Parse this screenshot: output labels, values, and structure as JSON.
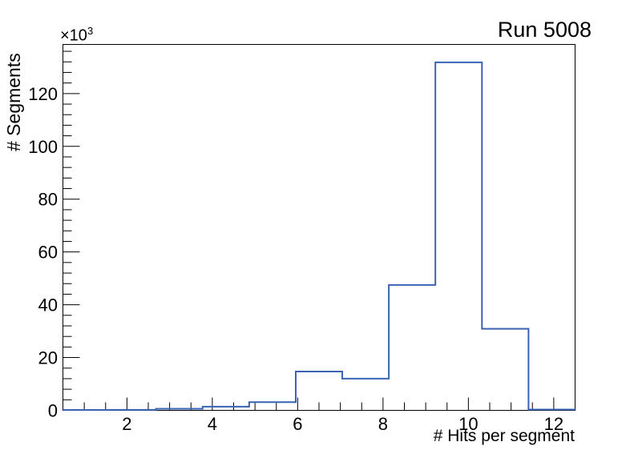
{
  "chart_data": {
    "type": "histogram-step",
    "title": "Run 5008",
    "xlabel": "# Hits per segment",
    "ylabel": "# Segments",
    "y_multiplier_base": "×10",
    "y_multiplier_exp": "3",
    "y_axis_unit": 1000,
    "xlim": [
      0.5,
      12.5
    ],
    "ylim": [
      0,
      138600
    ],
    "n_bins": 11,
    "bin_edges": [
      0.5,
      1.591,
      2.682,
      3.773,
      4.864,
      5.955,
      7.045,
      8.136,
      9.227,
      10.318,
      11.409,
      12.5
    ],
    "bin_values": [
      150,
      200,
      600,
      1400,
      3100,
      14700,
      12000,
      47500,
      131800,
      30900,
      300
    ],
    "x_major_ticks": [
      2,
      4,
      6,
      8,
      10,
      12
    ],
    "x_major_tick_labels": [
      "2",
      "4",
      "6",
      "8",
      "10",
      "12"
    ],
    "x_minor_step": 0.5,
    "y_major_ticks": [
      0,
      20000,
      40000,
      60000,
      80000,
      100000,
      120000
    ],
    "y_major_tick_labels": [
      "0",
      "20",
      "40",
      "60",
      "80",
      "100",
      "120"
    ],
    "y_minor_step": 4000,
    "line_color": "#3764b4",
    "line_width": 2,
    "frame_color": "#000000",
    "background": "#ffffff",
    "grid": false,
    "legend": null
  }
}
